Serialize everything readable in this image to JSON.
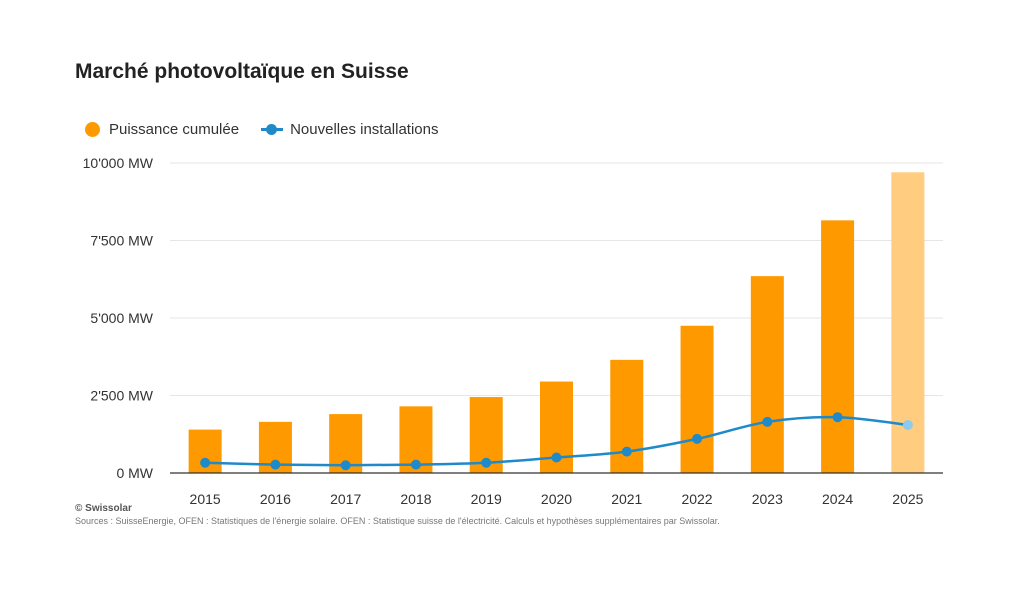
{
  "chart_data": {
    "type": "bar",
    "title": "Marché photovoltaïque en Suisse",
    "categories": [
      "2015",
      "2016",
      "2017",
      "2018",
      "2019",
      "2020",
      "2021",
      "2022",
      "2023",
      "2024",
      "2025"
    ],
    "series": [
      {
        "name": "Puissance cumulée",
        "type": "bar",
        "values": [
          1400,
          1650,
          1900,
          2150,
          2450,
          2950,
          3650,
          4750,
          6350,
          8150,
          9700
        ]
      },
      {
        "name": "Nouvelles installations",
        "type": "line",
        "values": [
          330,
          270,
          250,
          270,
          330,
          500,
          690,
          1100,
          1650,
          1800,
          1550
        ]
      }
    ],
    "ylim": [
      0,
      10000
    ],
    "yticks": [
      0,
      2500,
      5000,
      7500,
      10000
    ],
    "ytick_labels": [
      "0 MW",
      "2'500 MW",
      "5'000 MW",
      "7'500 MW",
      "10'000 MW"
    ],
    "estimate_categories": [
      "2025"
    ],
    "grid": true,
    "legend_position": "top-left",
    "colors": {
      "bar": "#ff9900",
      "bar_estimate": "#ffcc80",
      "line": "#1f8ac9",
      "line_estimate_point": "#8ccbee",
      "grid": "#e6e6e6",
      "axis": "#333333"
    }
  },
  "footer": {
    "copyright": "© Swissolar",
    "sources": "Sources : SuisseEnergie, OFEN : Statistiques de l'énergie solaire. OFEN : Statistique suisse de l'électricité. Calculs et hypothèses supplémentaires par Swissolar."
  }
}
